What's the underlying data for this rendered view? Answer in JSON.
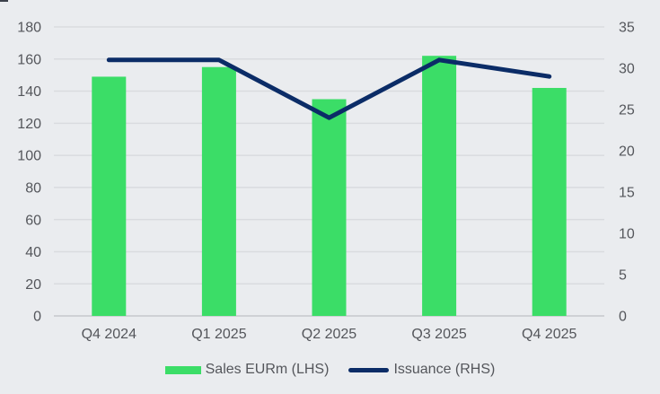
{
  "chart_data": {
    "type": "combo",
    "title": "",
    "categories": [
      "Q4 2024",
      "Q1 2025",
      "Q2 2025",
      "Q3 2025",
      "Q4 2025"
    ],
    "series": [
      {
        "name": "Sales EURm (LHS)",
        "type": "bar",
        "axis": "left",
        "color": "#3bdd67",
        "values": [
          149,
          155,
          135,
          162,
          142
        ]
      },
      {
        "name": "Issuance (RHS)",
        "type": "line",
        "axis": "right",
        "color": "#0b2c67",
        "values": [
          31,
          31,
          24,
          31,
          29
        ]
      }
    ],
    "left_axis": {
      "min": 0,
      "max": 180,
      "step": 20,
      "tick_labels": [
        "0",
        "20",
        "40",
        "60",
        "80",
        "100",
        "120",
        "140",
        "160",
        "180"
      ]
    },
    "right_axis": {
      "min": 0,
      "max": 35,
      "step": 5,
      "tick_labels": [
        "0",
        "5",
        "10",
        "15",
        "20",
        "25",
        "30",
        "35"
      ]
    },
    "grid": true,
    "legend_position": "bottom"
  },
  "colors": {
    "background": "#eaecef",
    "gridline": "#d9dbdf",
    "axis_line": "#cfd1d5",
    "tick_text": "#54565b",
    "bar_green": "#3bdd67",
    "line_navy": "#0b2c67"
  }
}
